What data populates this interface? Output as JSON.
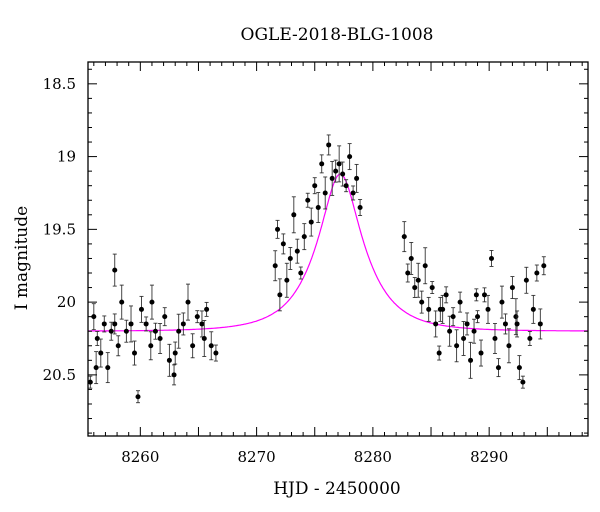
{
  "chart_data": {
    "type": "scatter",
    "title": "OGLE-2018-BLG-1008",
    "xlabel": "HJD - 2450000",
    "ylabel": "I magnitude",
    "xlim": [
      8255.5,
      8298.5
    ],
    "ylim": [
      20.92,
      18.35
    ],
    "y_inverted": true,
    "x_ticks": [
      8260,
      8270,
      8280,
      8290
    ],
    "y_ticks": [
      18.5,
      19,
      19.5,
      20,
      20.5
    ],
    "grid": false,
    "model_color": "#ff00ff",
    "point_color": "#000000",
    "model": {
      "t0": 8277.2,
      "peak_mag": 19.12,
      "baseline_mag": 20.2,
      "tE": 3.8,
      "x": [
        8255.5,
        8258,
        8260,
        8262,
        8264,
        8266,
        8268,
        8270,
        8271,
        8272,
        8273,
        8274,
        8275,
        8276,
        8276.6,
        8277.2,
        8277.8,
        8278.4,
        8279,
        8280,
        8281,
        8282,
        8283,
        8284,
        8285,
        8286,
        8288,
        8290,
        8292,
        8294,
        8296,
        8298.5
      ],
      "y": [
        20.19,
        20.18,
        20.17,
        20.16,
        20.14,
        20.11,
        20.05,
        19.94,
        19.85,
        19.72,
        19.56,
        19.39,
        19.24,
        19.15,
        19.13,
        19.12,
        19.13,
        19.15,
        19.21,
        19.37,
        19.55,
        19.71,
        19.83,
        19.92,
        19.99,
        20.04,
        20.1,
        20.13,
        20.15,
        20.17,
        20.18,
        20.19
      ]
    },
    "series": [
      {
        "x": [
          8255.7,
          8256.0,
          8256.3,
          8256.6,
          8256.9,
          8257.2,
          8257.5,
          8257.8,
          8258.1,
          8258.4,
          8258.8,
          8259.2,
          8259.5,
          8259.8,
          8260.1,
          8260.5,
          8260.9,
          8261.3,
          8261.7,
          8262.1,
          8262.5,
          8262.9,
          8263.3,
          8263.7,
          8264.1,
          8264.5,
          8264.9,
          8265.3,
          8265.7,
          8266.1,
          8266.5,
          8271.6,
          8271.8,
          8272.0,
          8272.3,
          8272.6,
          8272.9,
          8273.2,
          8273.5,
          8273.8,
          8274.1,
          8274.4,
          8274.7,
          8275.0,
          8275.3,
          8275.6,
          8275.9,
          8276.2,
          8276.5,
          8276.8,
          8277.1,
          8277.4,
          8277.7,
          8278.0,
          8278.3,
          8278.6,
          8278.9,
          8282.7,
          8283.0,
          8283.3,
          8283.6,
          8283.9,
          8284.2,
          8284.5,
          8284.8,
          8285.1,
          8285.4,
          8285.7,
          8286.0,
          8286.3,
          8286.6,
          8286.9,
          8287.2,
          8287.5,
          8287.8,
          8288.1,
          8288.4,
          8288.7,
          8289.0,
          8289.3,
          8289.6,
          8289.9,
          8290.2,
          8290.5,
          8290.8,
          8291.1,
          8291.4,
          8291.7,
          8292.0,
          8292.3,
          8292.6,
          8292.9,
          8293.2,
          8293.5,
          8293.8,
          8294.1,
          8294.4,
          8294.7,
          8256.2,
          8257.8,
          8261.0,
          8263.0,
          8265.5,
          8285.8,
          8288.9,
          8292.4
        ],
        "y": [
          20.55,
          20.1,
          20.25,
          20.35,
          20.15,
          20.45,
          20.2,
          19.78,
          20.3,
          20.0,
          20.2,
          20.15,
          20.35,
          20.65,
          20.05,
          20.15,
          20.3,
          20.2,
          20.25,
          20.1,
          20.4,
          20.5,
          20.2,
          20.15,
          20.0,
          20.3,
          20.1,
          20.15,
          20.05,
          20.3,
          20.35,
          19.75,
          19.5,
          19.95,
          19.6,
          19.85,
          19.7,
          19.4,
          19.65,
          19.8,
          19.55,
          19.3,
          19.45,
          19.2,
          19.35,
          19.05,
          19.25,
          18.92,
          19.15,
          19.1,
          19.05,
          19.12,
          19.2,
          19.0,
          19.25,
          19.15,
          19.35,
          19.55,
          19.8,
          19.7,
          19.9,
          19.85,
          20.0,
          19.75,
          20.05,
          19.9,
          20.15,
          20.35,
          20.05,
          19.95,
          20.2,
          20.1,
          20.3,
          20.0,
          20.25,
          20.15,
          20.4,
          20.2,
          20.1,
          20.35,
          19.95,
          20.05,
          19.7,
          20.25,
          20.45,
          20.0,
          20.15,
          20.3,
          19.9,
          20.1,
          20.45,
          20.55,
          19.85,
          20.25,
          20.05,
          19.8,
          20.15,
          19.75,
          20.45,
          20.15,
          20.0,
          20.35,
          20.25,
          20.05,
          19.95,
          20.15
        ]
      }
    ]
  }
}
